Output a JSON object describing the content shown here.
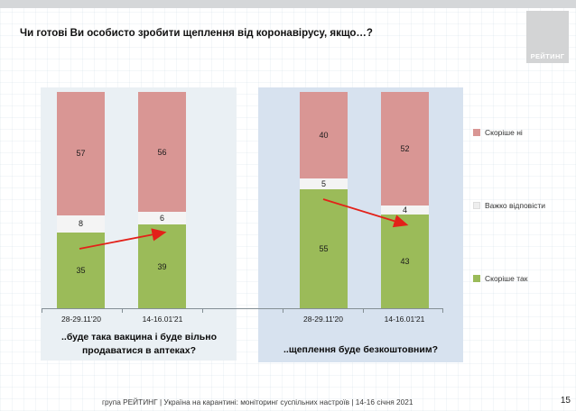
{
  "slide": {
    "title": "Чи готові Ви особисто зробити щеплення від коронавірусу, якщо…?",
    "logo_text": "РЕЙТИНГ",
    "footer_text": "група РЕЙТИНГ | Україна на карантині: моніторинг суспільних настроїв | 14-16 січня 2021",
    "page_number": "15"
  },
  "colors": {
    "rather_no": "#d99694",
    "hard_to_say": "#f4f4f4",
    "rather_yes": "#9bbb59",
    "arrow": "#e32119",
    "panel_left_bg": "#eaf0f4",
    "panel_right_bg": "#d7e2ef"
  },
  "legend": {
    "items": [
      {
        "label": "Скоріше ні",
        "color": "#d99694"
      },
      {
        "label": "Важко відповісти",
        "color": "#eeeeee"
      },
      {
        "label": "Скоріше так",
        "color": "#9bbb59"
      }
    ]
  },
  "chart_data": {
    "type": "bar",
    "subtype": "100%-stacked-column",
    "title": "Чи готові Ви особисто зробити щеплення від коронавірусу, якщо…?",
    "categories": [
      "28-29.11'20",
      "14-16.01'21"
    ],
    "series_order": [
      "Скоріше ні",
      "Важко відповісти",
      "Скоріше так"
    ],
    "ylim": [
      0,
      100
    ],
    "grid": false,
    "value_labels": true,
    "legend_position": "right",
    "groups": [
      {
        "question": "..буде така вакцина і буде вільно продаватися в аптеках?",
        "trend_arrow": "up",
        "series": [
          {
            "name": "Скоріше ні",
            "values": [
              57,
              56
            ]
          },
          {
            "name": "Важко відповісти",
            "values": [
              8,
              6
            ]
          },
          {
            "name": "Скоріше так",
            "values": [
              35,
              39
            ]
          }
        ]
      },
      {
        "question": "..щеплення буде безкоштовним?",
        "trend_arrow": "down",
        "series": [
          {
            "name": "Скоріше ні",
            "values": [
              40,
              52
            ]
          },
          {
            "name": "Важко відповісти",
            "values": [
              5,
              4
            ]
          },
          {
            "name": "Скоріше так",
            "values": [
              55,
              43
            ]
          }
        ]
      }
    ]
  }
}
